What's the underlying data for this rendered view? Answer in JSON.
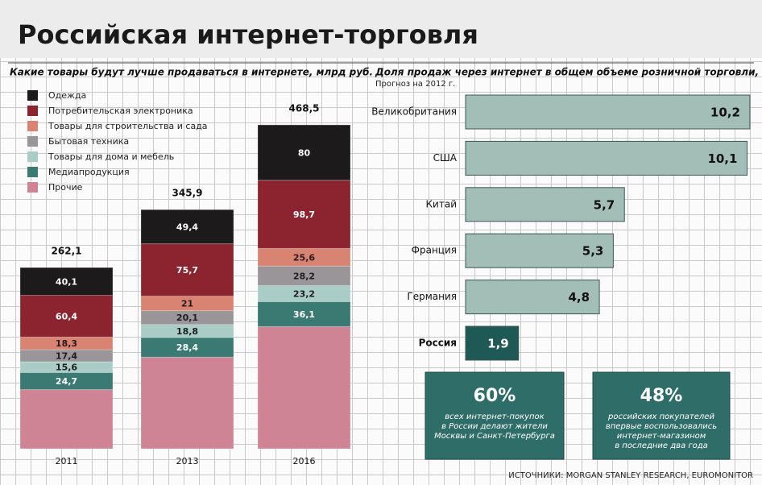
{
  "title": "Российская интернет-торговля",
  "chart_data": [
    {
      "type": "bar",
      "stacked": true,
      "title": "Какие товары будут лучше продаваться в интернете, млрд руб.",
      "categories": [
        "2011",
        "2013",
        "2016"
      ],
      "series": [
        {
          "name": "Одежда",
          "color": "#1c1a1b",
          "label_color": "#ffffff",
          "values": [
            40.1,
            49.4,
            80
          ],
          "value_labels": [
            "40,1",
            "49,4",
            "80"
          ]
        },
        {
          "name": "Потребительская электроника",
          "color": "#8c2430",
          "label_color": "#ffffff",
          "values": [
            60.4,
            75.7,
            98.7
          ],
          "value_labels": [
            "60,4",
            "75,7",
            "98,7"
          ]
        },
        {
          "name": "Товары для строительства и сада",
          "color": "#d98473",
          "label_color": "#2a1a1a",
          "values": [
            18.3,
            21,
            25.6
          ],
          "value_labels": [
            "18,3",
            "21",
            "25,6"
          ]
        },
        {
          "name": "Бытовая техника",
          "color": "#9a9598",
          "label_color": "#1e1e1e",
          "values": [
            17.4,
            20.1,
            28.2
          ],
          "value_labels": [
            "17,4",
            "20,1",
            "28,2"
          ]
        },
        {
          "name": "Товары для дома и мебель",
          "color": "#a9cdc6",
          "label_color": "#1e1e1e",
          "values": [
            15.6,
            18.8,
            23.2
          ],
          "value_labels": [
            "15,6",
            "18,8",
            "23,2"
          ]
        },
        {
          "name": "Медиапродукция",
          "color": "#3a7a72",
          "label_color": "#ffffff",
          "values": [
            24.7,
            28.4,
            36.1
          ],
          "value_labels": [
            "24,7",
            "28,4",
            "36,1"
          ]
        },
        {
          "name": "Прочие",
          "color": "#cf8495",
          "label_color": "#ffffff",
          "values": [
            85.6,
            132.5,
            176.7
          ],
          "value_labels": [
            null,
            null,
            null
          ]
        }
      ],
      "totals": [
        262.1,
        345.9,
        468.5
      ],
      "total_labels": [
        "262,1",
        "345,9",
        "468,5"
      ]
    },
    {
      "type": "bar",
      "orientation": "horizontal",
      "title": "Доля продаж через интернет в общем объеме розничной торговли, %",
      "subtitle": "Прогноз на 2012 г.",
      "categories": [
        "Великобритания",
        "США",
        "Китай",
        "Франция",
        "Германия",
        "Россия"
      ],
      "values": [
        10.2,
        10.1,
        5.7,
        5.3,
        4.8,
        1.9
      ],
      "value_labels": [
        "10,2",
        "10,1",
        "5,7",
        "5,3",
        "4,8",
        "1,9"
      ],
      "colors": [
        "#a3bdb7",
        "#a3bdb7",
        "#a3bdb7",
        "#a3bdb7",
        "#a3bdb7",
        "#1f5956"
      ]
    }
  ],
  "callouts": [
    {
      "value": "60%",
      "lines": [
        "всех интернет-покупок",
        "в России делают жители",
        "Москвы и Санкт-Петербурга"
      ]
    },
    {
      "value": "48%",
      "lines": [
        "российских покупателей",
        "впервые воспользовались",
        "интернет-магазином",
        "в последние два года"
      ]
    }
  ],
  "source": "ИСТОЧНИКИ: MORGAN STANLEY RESEARCH, EUROMONITOR"
}
